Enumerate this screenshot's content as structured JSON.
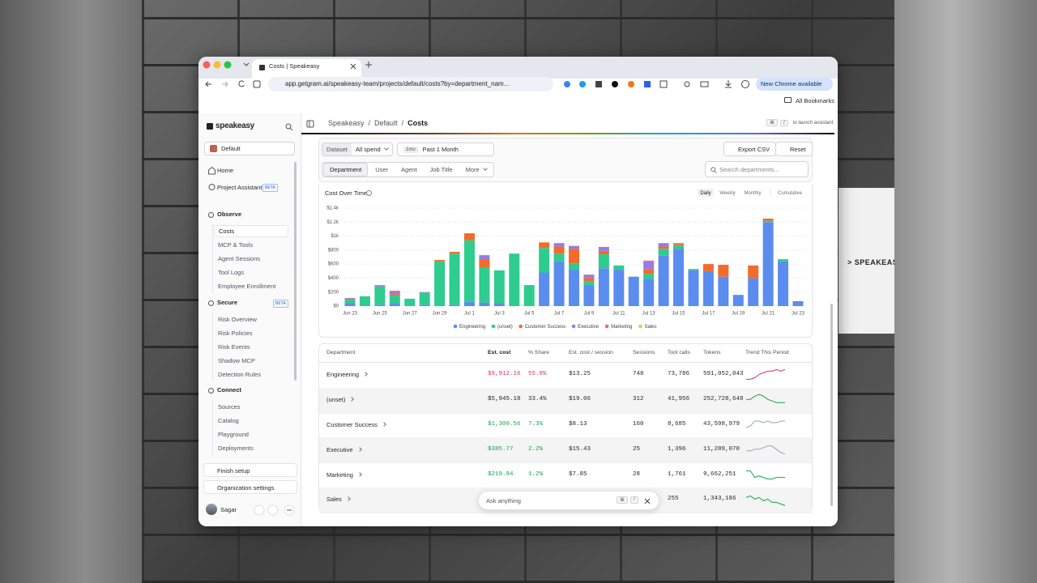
{
  "background": {
    "card_text": "> SPEAKEAS"
  },
  "browser": {
    "tab_title": "Costs | Speakeasy",
    "url": "app.getgram.ai/speakeasy-team/projects/default/costs?by=department_nam...",
    "update_button": "New Chrome available",
    "bookmarks": "All Bookmarks"
  },
  "sidebar": {
    "logo": "speakeasy",
    "project": "Default",
    "top_items": [
      "Home",
      "Project Assistant"
    ],
    "top_badge": "BETA",
    "sections": [
      {
        "title": "Observe",
        "items": [
          "Costs",
          "MCP & Tools",
          "Agent Sessions",
          "Tool Logs",
          "Employee Enrollment"
        ]
      },
      {
        "title": "Secure",
        "badge": "BETA",
        "items": [
          "Risk Overview",
          "Risk Policies",
          "Risk Events",
          "Shadow MCP",
          "Detection Rules"
        ]
      },
      {
        "title": "Connect",
        "items": [
          "Sources",
          "Catalog",
          "Playground",
          "Deployments"
        ]
      }
    ],
    "finish_setup": "Finish setup",
    "org_settings": "Organization settings",
    "user": "Sagar"
  },
  "header": {
    "breadcrumb": [
      "Speakeasy",
      "Default",
      "Costs"
    ],
    "separator": "/",
    "shortcut_keys": [
      "⌘",
      "/"
    ],
    "shortcut_hint": "to launch assistant"
  },
  "filters": {
    "dataset_label": "Dataset",
    "dataset": "All spend",
    "range_badge": "1mo",
    "range": "Past 1 Month",
    "export": "Export CSV",
    "reset": "Reset",
    "tabs": [
      "Department",
      "User",
      "Agent",
      "Job Title",
      "More"
    ],
    "search_placeholder": "Search departments..."
  },
  "chart_data": {
    "type": "bar",
    "stacked": true,
    "title": "Cost Over Time",
    "views": [
      "Daily",
      "Weekly",
      "Monthly",
      "Cumulative"
    ],
    "categories": [
      "Jun 23",
      null,
      "Jun 25",
      null,
      "Jun 27",
      null,
      "Jun 29",
      null,
      "Jul 1",
      null,
      "Jul 3",
      null,
      "Jul 5",
      null,
      "Jul 7",
      null,
      "Jul 9",
      null,
      "Jul 11",
      null,
      "Jul 13",
      null,
      "Jul 15",
      null,
      "Jul 17",
      null,
      "Jul 19",
      null,
      "Jul 21",
      null,
      "Jul 23"
    ],
    "series": [
      {
        "name": "Engineering",
        "color": "#5b8def",
        "values": [
          40,
          0,
          20,
          40,
          0,
          20,
          0,
          20,
          60,
          50,
          40,
          0,
          0,
          480,
          640,
          520,
          300,
          540,
          520,
          420,
          390,
          720,
          820,
          510,
          500,
          420,
          160,
          400,
          1200,
          640,
          70
        ]
      },
      {
        "name": "(unset)",
        "color": "#2ecc8f",
        "values": [
          50,
          140,
          260,
          110,
          105,
          170,
          640,
          730,
          880,
          500,
          470,
          750,
          300,
          350,
          110,
          90,
          50,
          200,
          60,
          0,
          70,
          100,
          50,
          20,
          0,
          0,
          0,
          0,
          20,
          30,
          0
        ]
      },
      {
        "name": "Customer Success",
        "color": "#f26b2a",
        "values": [
          15,
          0,
          0,
          20,
          0,
          0,
          20,
          25,
          100,
          120,
          0,
          0,
          0,
          80,
          100,
          210,
          50,
          50,
          0,
          0,
          70,
          30,
          20,
          0,
          100,
          170,
          0,
          180,
          30,
          0,
          0
        ]
      },
      {
        "name": "Executive",
        "color": "#9b7be0",
        "values": [
          10,
          0,
          20,
          40,
          0,
          10,
          0,
          0,
          0,
          50,
          0,
          0,
          0,
          0,
          50,
          40,
          50,
          55,
          0,
          0,
          110,
          50,
          10,
          0,
          0,
          0,
          0,
          0,
          0,
          0,
          0
        ]
      },
      {
        "name": "Marketing",
        "color": "#f06292",
        "values": [
          0,
          0,
          0,
          10,
          0,
          0,
          0,
          0,
          0,
          10,
          0,
          0,
          0,
          0,
          0,
          0,
          0,
          0,
          0,
          0,
          10,
          0,
          0,
          0,
          0,
          0,
          0,
          0,
          0,
          0,
          0
        ]
      },
      {
        "name": "Sales",
        "color": "#f5c542",
        "values": [
          0,
          0,
          0,
          0,
          0,
          0,
          0,
          0,
          0,
          0,
          0,
          0,
          0,
          0,
          0,
          0,
          0,
          0,
          0,
          0,
          0,
          0,
          0,
          0,
          0,
          0,
          0,
          0,
          0,
          0,
          0
        ]
      }
    ],
    "ylim": [
      0,
      1400
    ],
    "yticks": [
      {
        "value": 0,
        "label": "$0"
      },
      {
        "value": 200,
        "label": "$200"
      },
      {
        "value": 400,
        "label": "$400"
      },
      {
        "value": 600,
        "label": "$600"
      },
      {
        "value": 800,
        "label": "$800"
      },
      {
        "value": 1000,
        "label": "$1k"
      },
      {
        "value": 1200,
        "label": "$1.2k"
      },
      {
        "value": 1400,
        "label": "$1.4k"
      }
    ],
    "grid": true
  },
  "table": {
    "columns": [
      "Department",
      "Est. cost",
      "% Share",
      "Est. cost / session",
      "Sessions",
      "Tool calls",
      "Tokens",
      "Trend This Period"
    ],
    "rows": [
      {
        "name": "Engineering",
        "cost": "$9,912.16",
        "share": "55.8%",
        "per_session": "$13.25",
        "sessions": "748",
        "tool_calls": "73,786",
        "tokens": "591,052,043",
        "color": "#d6336c",
        "trend_color": "#d6336c",
        "trend": [
          2,
          2,
          3,
          5,
          6,
          7,
          7,
          8,
          7,
          8
        ]
      },
      {
        "name": "(unset)",
        "cost": "$5,945.18",
        "share": "33.4%",
        "per_session": "$19.06",
        "sessions": "312",
        "tool_calls": "41,956",
        "tokens": "252,728,648",
        "color": "#222222",
        "trend_color": "#16a34a",
        "trend": [
          5,
          5,
          7,
          8,
          7,
          5,
          4,
          3,
          3,
          3
        ]
      },
      {
        "name": "Customer Success",
        "cost": "$1,300.56",
        "share": "7.3%",
        "per_session": "$8.13",
        "sessions": "160",
        "tool_calls": "8,685",
        "tokens": "43,598,979",
        "color": "#16a34a",
        "trend_color": "#9ca3af",
        "trend": [
          3,
          4,
          7,
          7,
          6,
          7,
          6,
          6,
          7,
          7
        ]
      },
      {
        "name": "Executive",
        "cost": "$385.77",
        "share": "2.2%",
        "per_session": "$15.43",
        "sessions": "25",
        "tool_calls": "1,396",
        "tokens": "11,289,070",
        "color": "#16a34a",
        "trend_color": "#9ca3af",
        "trend": [
          4,
          4,
          5,
          5,
          6,
          7,
          7,
          5,
          3,
          2
        ]
      },
      {
        "name": "Marketing",
        "cost": "$219.94",
        "share": "1.2%",
        "per_session": "$7.85",
        "sessions": "28",
        "tool_calls": "1,761",
        "tokens": "9,662,251",
        "color": "#16a34a",
        "trend_color": "#16a34a",
        "trend": [
          7,
          7,
          3,
          4,
          3,
          2,
          2,
          3,
          3,
          3
        ]
      },
      {
        "name": "Sales",
        "tool_calls": "255",
        "tokens": "1,343,186",
        "color": "#16a34a",
        "trend_color": "#16a34a",
        "trend": [
          6,
          7,
          5,
          6,
          4,
          5,
          3,
          3,
          2,
          1
        ]
      }
    ]
  },
  "assistant": {
    "placeholder": "Ask anything",
    "keys": [
      "⌘",
      "/"
    ]
  }
}
